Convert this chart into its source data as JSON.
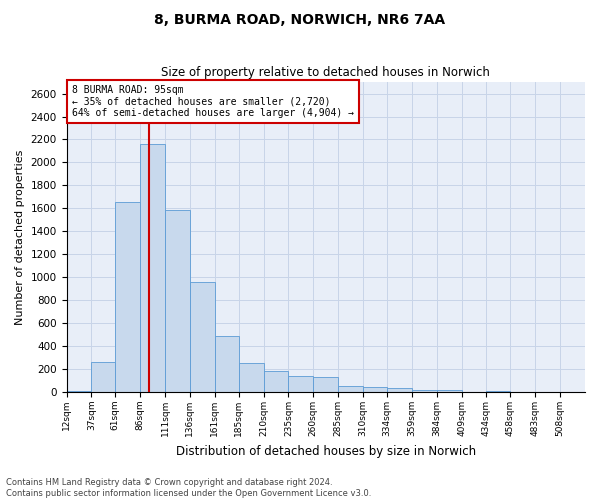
{
  "title_line1": "8, BURMA ROAD, NORWICH, NR6 7AA",
  "title_line2": "Size of property relative to detached houses in Norwich",
  "xlabel": "Distribution of detached houses by size in Norwich",
  "ylabel": "Number of detached properties",
  "footer_line1": "Contains HM Land Registry data © Crown copyright and database right 2024.",
  "footer_line2": "Contains public sector information licensed under the Open Government Licence v3.0.",
  "annotation_line1": "8 BURMA ROAD: 95sqm",
  "annotation_line2": "← 35% of detached houses are smaller (2,720)",
  "annotation_line3": "64% of semi-detached houses are larger (4,904) →",
  "property_size": 95,
  "bar_color": "#c8d9ed",
  "bar_edge_color": "#5b9bd5",
  "grid_color": "#c8d4e8",
  "background_color": "#e8eef8",
  "annotation_box_color": "#ffffff",
  "annotation_box_edge": "#cc0000",
  "vline_color": "#cc0000",
  "ylim": [
    0,
    2700
  ],
  "yticks": [
    0,
    200,
    400,
    600,
    800,
    1000,
    1200,
    1400,
    1600,
    1800,
    2000,
    2200,
    2400,
    2600
  ],
  "bin_edges": [
    12,
    37,
    61,
    86,
    111,
    136,
    161,
    185,
    210,
    235,
    260,
    285,
    310,
    334,
    359,
    384,
    409,
    434,
    458,
    483,
    508
  ],
  "bin_labels": [
    "12sqm",
    "37sqm",
    "61sqm",
    "86sqm",
    "111sqm",
    "136sqm",
    "161sqm",
    "185sqm",
    "210sqm",
    "235sqm",
    "260sqm",
    "285sqm",
    "310sqm",
    "334sqm",
    "359sqm",
    "384sqm",
    "409sqm",
    "434sqm",
    "458sqm",
    "483sqm",
    "508sqm"
  ],
  "bar_heights": [
    10,
    260,
    1660,
    2160,
    1590,
    960,
    490,
    250,
    180,
    140,
    130,
    55,
    45,
    40,
    20,
    15,
    5,
    8,
    5,
    3
  ]
}
